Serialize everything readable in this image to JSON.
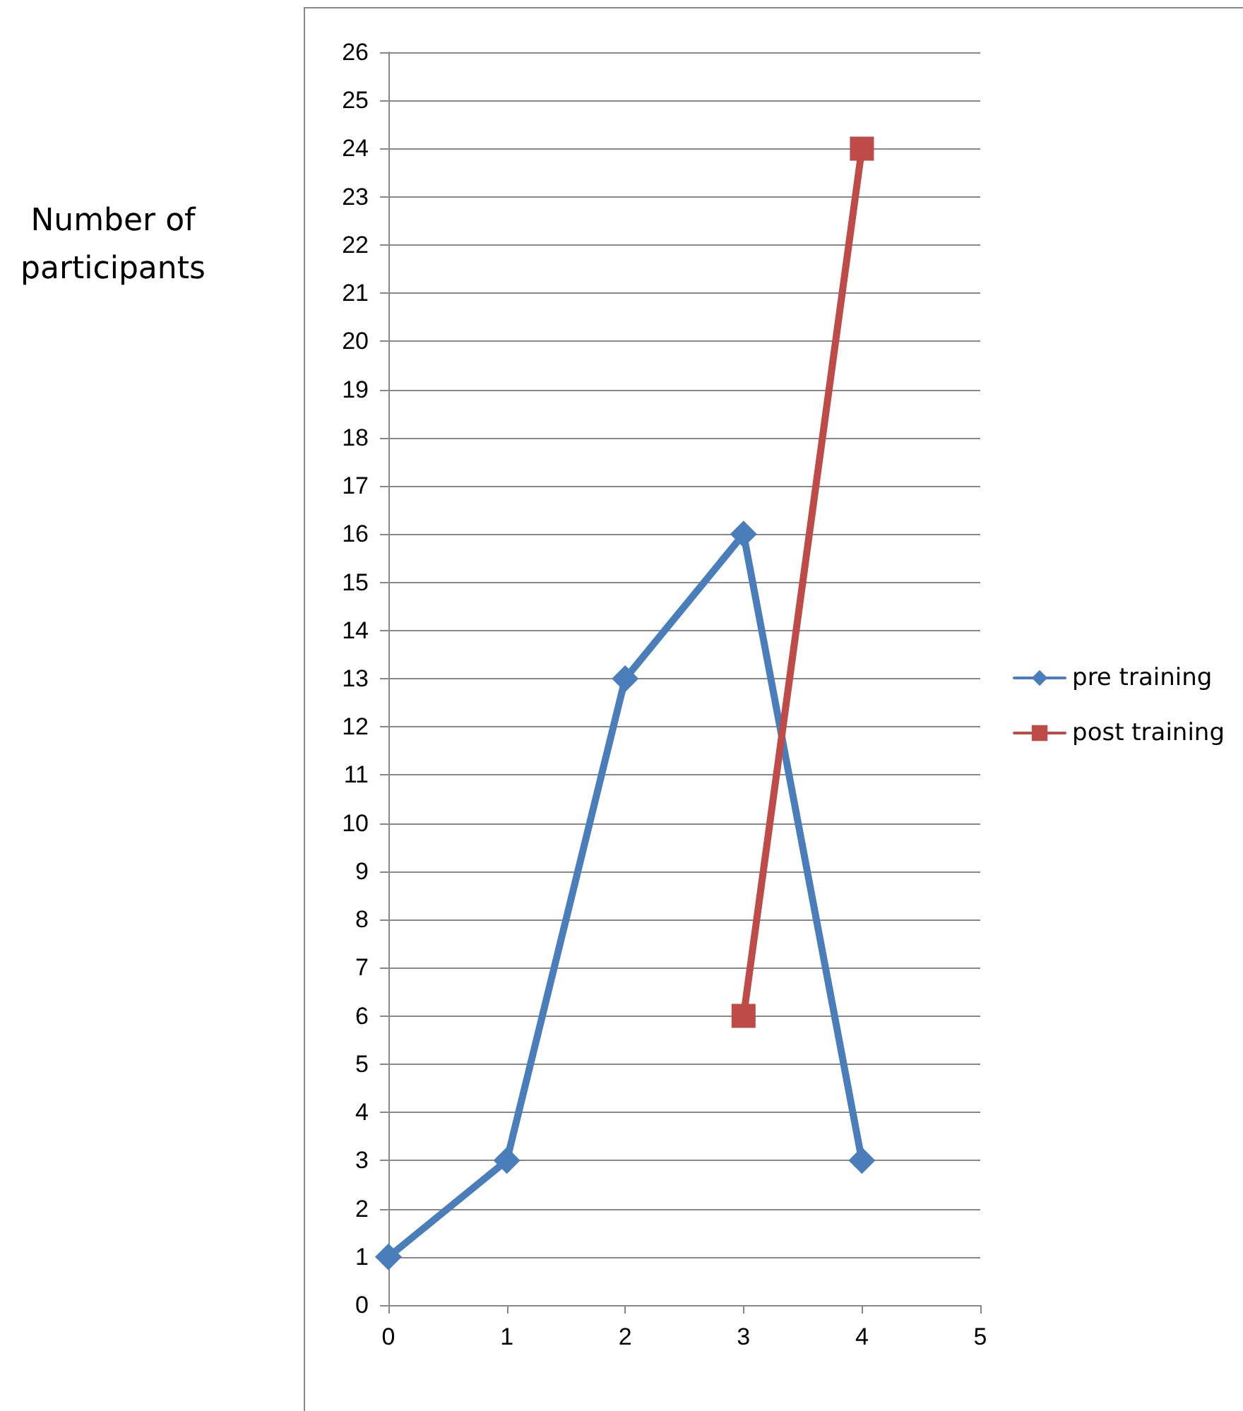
{
  "chart_data": {
    "type": "line",
    "ylabel": "Number of participants",
    "xlim": [
      0,
      5
    ],
    "xticks": [
      0,
      1,
      2,
      3,
      4,
      5
    ],
    "ylim": [
      0,
      26
    ],
    "yticks": [
      0,
      1,
      2,
      3,
      4,
      5,
      6,
      7,
      8,
      9,
      10,
      11,
      12,
      13,
      14,
      15,
      16,
      17,
      18,
      19,
      20,
      21,
      22,
      23,
      24,
      25,
      26
    ],
    "grid": "y",
    "legend": "right",
    "series": [
      {
        "name": "pre training",
        "color": "#4a7ebb",
        "marker": "diamond",
        "x": [
          0,
          1,
          2,
          3,
          4
        ],
        "values": [
          1,
          3,
          13,
          16,
          3
        ]
      },
      {
        "name": "post training",
        "color": "#be4b48",
        "marker": "square",
        "x": [
          3,
          4
        ],
        "values": [
          6,
          24
        ]
      }
    ]
  }
}
